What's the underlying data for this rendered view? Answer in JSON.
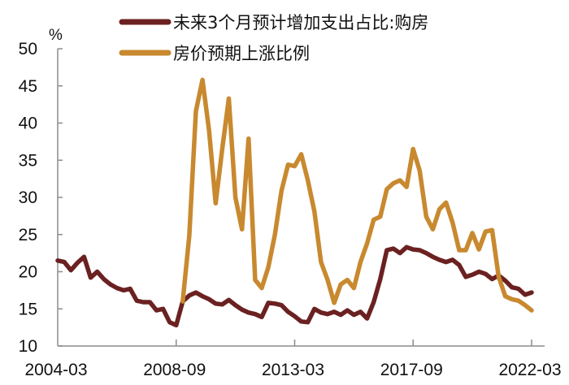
{
  "chart_data": {
    "type": "line",
    "title": "",
    "xlabel": "",
    "ylabel": "%",
    "ylim": [
      10,
      50
    ],
    "yticks": [
      10,
      15,
      20,
      25,
      30,
      35,
      40,
      45,
      50
    ],
    "xtick_labels": [
      "2004-03",
      "2008-09",
      "2013-03",
      "2017-09",
      "2022-03"
    ],
    "xtick_index": [
      0,
      18,
      36,
      54,
      72
    ],
    "x_unit": "quarter index from 2004-03",
    "grid": false,
    "legend_position": "top",
    "series": [
      {
        "name": "未来3个月预计增加支出占比:购房",
        "color": "#6b2121",
        "start_index": 0,
        "values": [
          21.5,
          21.3,
          20.2,
          21.2,
          22.0,
          19.2,
          20.0,
          19.0,
          18.3,
          17.8,
          17.5,
          17.7,
          16.1,
          15.9,
          15.9,
          14.8,
          15.0,
          13.2,
          12.8,
          16.0,
          16.8,
          17.2,
          16.7,
          16.3,
          15.7,
          15.6,
          16.2,
          15.5,
          14.9,
          14.5,
          14.3,
          13.9,
          15.8,
          15.7,
          15.5,
          14.6,
          14.0,
          13.3,
          13.2,
          15.0,
          14.5,
          14.3,
          14.6,
          14.2,
          14.8,
          14.2,
          14.6,
          13.7,
          15.9,
          19.0,
          22.9,
          23.1,
          22.5,
          23.3,
          23.0,
          22.9,
          22.5,
          22.0,
          21.6,
          21.3,
          21.6,
          20.9,
          19.3,
          19.6,
          20.0,
          19.7,
          19.0,
          19.5,
          18.8,
          17.9,
          17.7,
          16.9,
          17.2
        ]
      },
      {
        "name": "房价预期上涨比例",
        "color": "#c8892f",
        "start_index": 19,
        "values": [
          16.0,
          24.9,
          41.6,
          45.8,
          39.0,
          29.2,
          36.5,
          43.3,
          30.0,
          25.7,
          37.9,
          18.9,
          17.8,
          20.6,
          25.0,
          30.9,
          34.4,
          34.2,
          35.8,
          32.3,
          28.1,
          21.3,
          18.9,
          15.8,
          18.3,
          18.9,
          17.8,
          21.3,
          23.8,
          27.0,
          27.4,
          31.1,
          31.9,
          32.3,
          31.4,
          36.5,
          33.6,
          27.4,
          25.7,
          28.4,
          29.3,
          26.6,
          22.9,
          22.9,
          25.2,
          23.0,
          25.4,
          25.6,
          19.3,
          16.7,
          16.3,
          16.1,
          15.5,
          14.8
        ]
      }
    ]
  },
  "axis": {
    "y_unit": "%"
  }
}
